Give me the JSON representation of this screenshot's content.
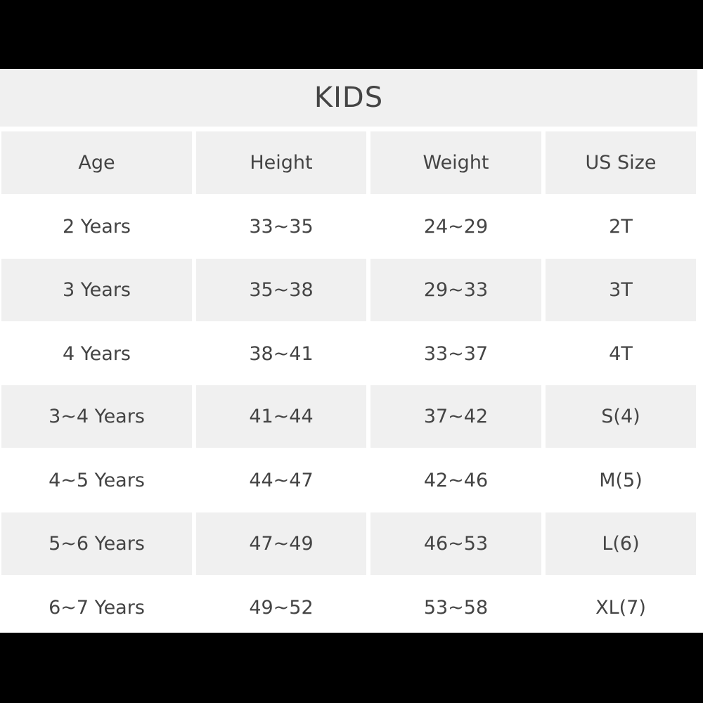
{
  "title": "KIDS",
  "table": {
    "header": [
      "Age",
      "Height",
      "Weight",
      "US Size"
    ],
    "rows": [
      [
        "2 Years",
        "33~35",
        "24~29",
        "2T"
      ],
      [
        "3 Years",
        "35~38",
        "29~33",
        "3T"
      ],
      [
        "4 Years",
        "38~41",
        "33~37",
        "4T"
      ],
      [
        "3~4 Years",
        "41~44",
        "37~42",
        "S(4)"
      ],
      [
        "4~5 Years",
        "44~47",
        "42~46",
        "M(5)"
      ],
      [
        "5~6 Years",
        "47~49",
        "46~53",
        "L(6)"
      ],
      [
        "6~7 Years",
        "49~52",
        "53~58",
        "XL(7)"
      ]
    ]
  }
}
